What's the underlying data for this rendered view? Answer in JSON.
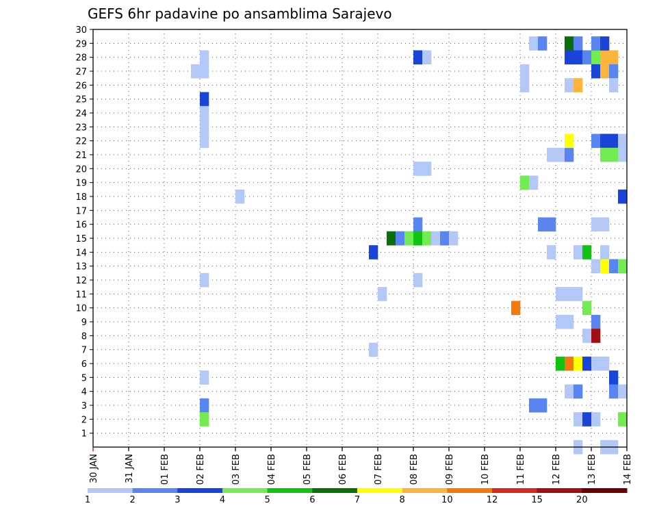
{
  "chart_data": {
    "type": "heatmap",
    "title": "GEFS 6hr padavine po ansamblima Sarajevo",
    "xlabel": "",
    "ylabel": "",
    "x_ticks": [
      "30 JAN",
      "31 JAN",
      "01 FEB",
      "02 FEB",
      "03 FEB",
      "04 FEB",
      "05 FEB",
      "06 FEB",
      "07 FEB",
      "08 FEB",
      "09 FEB",
      "10 FEB",
      "11 FEB",
      "12 FEB",
      "13 FEB",
      "14 FEB"
    ],
    "y_ticks": [
      1,
      2,
      3,
      4,
      5,
      6,
      7,
      8,
      9,
      10,
      11,
      12,
      13,
      14,
      15,
      16,
      17,
      18,
      19,
      20,
      21,
      22,
      23,
      24,
      25,
      26,
      27,
      28,
      29,
      30
    ],
    "x_range_days": [
      0,
      15
    ],
    "y_range": [
      0,
      30
    ],
    "step_days": 0.25,
    "grid": true,
    "colorbar": {
      "labels": [
        "1",
        "2",
        "3",
        "4",
        "5",
        "6",
        "7",
        "8",
        "10",
        "12",
        "15",
        "20"
      ],
      "colors": [
        "#b4c8f8",
        "#5a84f0",
        "#1a44d8",
        "#72ec52",
        "#12c212",
        "#0a6e0a",
        "#ffff00",
        "#fcb43c",
        "#f4780a",
        "#d8281a",
        "#a01010",
        "#6a0000"
      ]
    },
    "cells": [
      [
        3.0,
        28,
        1
      ],
      [
        3.0,
        27,
        1
      ],
      [
        2.75,
        27,
        1
      ],
      [
        3.0,
        25,
        3
      ],
      [
        3.0,
        24,
        1
      ],
      [
        3.0,
        23,
        1
      ],
      [
        3.0,
        22,
        1
      ],
      [
        3.0,
        12,
        1
      ],
      [
        3.0,
        5,
        1
      ],
      [
        3.0,
        3,
        2
      ],
      [
        3.0,
        2,
        4
      ],
      [
        4.0,
        18,
        1
      ],
      [
        7.75,
        14,
        3
      ],
      [
        7.75,
        7,
        1
      ],
      [
        8.0,
        11,
        1
      ],
      [
        8.25,
        15,
        6
      ],
      [
        8.5,
        15,
        2
      ],
      [
        8.75,
        15,
        4
      ],
      [
        9.0,
        15,
        5
      ],
      [
        9.25,
        15,
        4
      ],
      [
        9.5,
        15,
        1
      ],
      [
        9.75,
        15,
        2
      ],
      [
        10.0,
        15,
        1
      ],
      [
        9.0,
        16,
        2
      ],
      [
        9.0,
        28,
        3
      ],
      [
        9.25,
        28,
        1
      ],
      [
        9.0,
        20,
        1
      ],
      [
        9.25,
        20,
        1
      ],
      [
        9.0,
        12,
        1
      ],
      [
        11.75,
        10,
        9
      ],
      [
        12.0,
        26,
        1
      ],
      [
        12.0,
        27,
        1
      ],
      [
        12.0,
        19,
        4
      ],
      [
        12.25,
        19,
        1
      ],
      [
        12.25,
        29,
        1
      ],
      [
        12.5,
        29,
        2
      ],
      [
        12.25,
        3,
        2
      ],
      [
        12.5,
        3,
        2
      ],
      [
        12.5,
        16,
        2
      ],
      [
        12.75,
        16,
        2
      ],
      [
        12.75,
        21,
        1
      ],
      [
        13.0,
        21,
        1
      ],
      [
        13.25,
        21,
        2
      ],
      [
        12.75,
        14,
        1
      ],
      [
        13.0,
        11,
        1
      ],
      [
        13.25,
        11,
        1
      ],
      [
        13.5,
        11,
        1
      ],
      [
        13.0,
        9,
        1
      ],
      [
        13.25,
        9,
        1
      ],
      [
        13.0,
        6,
        5
      ],
      [
        13.25,
        6,
        9
      ],
      [
        13.5,
        6,
        7
      ],
      [
        13.75,
        6,
        3
      ],
      [
        14.0,
        6,
        1
      ],
      [
        14.25,
        6,
        1
      ],
      [
        13.25,
        29,
        6
      ],
      [
        13.5,
        29,
        2
      ],
      [
        13.25,
        28,
        3
      ],
      [
        13.5,
        28,
        3
      ],
      [
        13.75,
        28,
        2
      ],
      [
        14.0,
        28,
        4
      ],
      [
        14.25,
        28,
        8
      ],
      [
        14.5,
        28,
        8
      ],
      [
        13.25,
        26,
        1
      ],
      [
        13.5,
        26,
        8
      ],
      [
        13.25,
        22,
        7
      ],
      [
        13.25,
        4,
        1
      ],
      [
        13.5,
        4,
        2
      ],
      [
        13.5,
        2,
        1
      ],
      [
        13.5,
        14,
        1
      ],
      [
        13.75,
        14,
        5
      ],
      [
        13.75,
        10,
        4
      ],
      [
        13.75,
        8,
        1
      ],
      [
        13.5,
        0,
        1
      ],
      [
        14.0,
        29,
        2
      ],
      [
        14.25,
        29,
        3
      ],
      [
        14.0,
        27,
        3
      ],
      [
        14.25,
        27,
        8
      ],
      [
        14.5,
        27,
        2
      ],
      [
        14.5,
        26,
        1
      ],
      [
        14.0,
        22,
        2
      ],
      [
        14.25,
        22,
        3
      ],
      [
        14.5,
        22,
        3
      ],
      [
        14.75,
        22,
        1
      ],
      [
        14.25,
        21,
        4
      ],
      [
        14.5,
        21,
        4
      ],
      [
        14.75,
        21,
        1
      ],
      [
        14.0,
        16,
        1
      ],
      [
        14.25,
        16,
        1
      ],
      [
        14.25,
        14,
        1
      ],
      [
        14.0,
        13,
        1
      ],
      [
        14.25,
        13,
        7
      ],
      [
        14.5,
        13,
        2
      ],
      [
        14.75,
        13,
        4
      ],
      [
        15.0,
        13,
        1
      ],
      [
        15.25,
        13,
        1
      ],
      [
        14.0,
        9,
        2
      ],
      [
        14.0,
        8,
        11
      ],
      [
        13.75,
        2,
        3
      ],
      [
        14.0,
        2,
        1
      ],
      [
        14.5,
        5,
        3
      ],
      [
        14.5,
        4,
        2
      ],
      [
        14.75,
        4,
        1
      ],
      [
        14.25,
        0,
        1
      ],
      [
        14.5,
        0,
        1
      ],
      [
        14.75,
        2,
        4
      ],
      [
        15.0,
        2,
        1
      ],
      [
        14.75,
        18,
        3
      ],
      [
        15.0,
        18,
        7
      ],
      [
        15.25,
        18,
        7
      ],
      [
        15.5,
        18,
        4
      ],
      [
        15.75,
        18,
        1
      ],
      [
        15.0,
        21,
        1
      ],
      [
        15.25,
        21,
        1
      ],
      [
        15.5,
        21,
        1
      ],
      [
        15.75,
        21,
        3
      ],
      [
        15.0,
        12,
        5
      ],
      [
        15.0,
        9,
        12
      ],
      [
        15.25,
        9,
        8
      ],
      [
        15.0,
        6,
        2
      ],
      [
        15.25,
        6,
        1
      ],
      [
        15.5,
        6,
        1
      ],
      [
        15.75,
        6,
        1
      ],
      [
        15.0,
        1,
        2
      ],
      [
        15.25,
        1,
        2
      ],
      [
        15.5,
        1,
        4
      ],
      [
        15.75,
        1,
        2
      ],
      [
        15.75,
        3,
        2
      ],
      [
        15.5,
        26,
        4
      ],
      [
        15.75,
        26,
        1
      ],
      [
        15.5,
        25,
        12
      ],
      [
        15.75,
        14,
        8
      ],
      [
        15.75,
        13,
        3
      ],
      [
        15.75,
        7,
        9
      ],
      [
        15.5,
        7,
        2
      ],
      [
        15.5,
        5,
        3
      ],
      [
        15.75,
        5,
        5
      ],
      [
        15.75,
        0,
        1
      ]
    ]
  }
}
